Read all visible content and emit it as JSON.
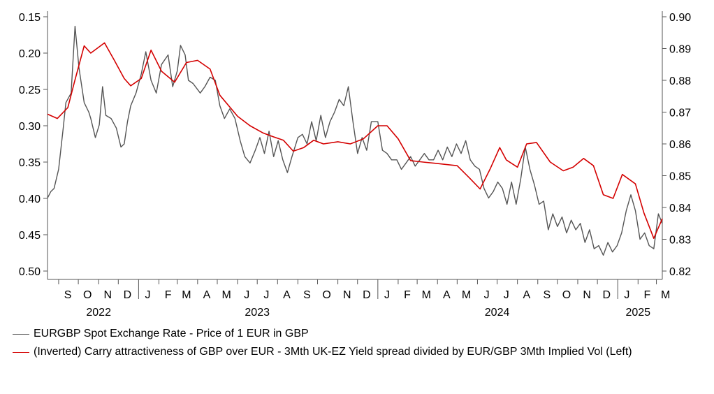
{
  "chart_data": {
    "type": "line",
    "title": "",
    "left_axis": {
      "ylim": [
        0.15,
        0.5
      ],
      "inverted": true,
      "ticks": [
        "0.15",
        "0.20",
        "0.25",
        "0.30",
        "0.35",
        "0.40",
        "0.45",
        "0.50"
      ]
    },
    "right_axis": {
      "ylim": [
        0.82,
        0.9
      ],
      "ticks": [
        "0.90",
        "0.89",
        "0.88",
        "0.87",
        "0.86",
        "0.85",
        "0.84",
        "0.83",
        "0.82"
      ]
    },
    "x_axis": {
      "range": [
        "2022-08-15",
        "2025-03-10"
      ],
      "month_labels": [
        "S",
        "O",
        "N",
        "D",
        "J",
        "F",
        "M",
        "A",
        "M",
        "J",
        "J",
        "A",
        "S",
        "O",
        "N",
        "D",
        "J",
        "F",
        "M",
        "A",
        "M",
        "J",
        "J",
        "A",
        "S",
        "O",
        "N",
        "D",
        "J",
        "F",
        "M"
      ],
      "year_labels": [
        "2022",
        "2023",
        "2024",
        "2025"
      ]
    },
    "grid": false,
    "series": [
      {
        "name": "EURGBP Spot Exchange Rate - Price of 1 EUR in GBP",
        "axis": "right",
        "color": "#555555",
        "points": [
          [
            "2022-08-15",
            0.843
          ],
          [
            "2022-08-20",
            0.845
          ],
          [
            "2022-08-25",
            0.846
          ],
          [
            "2022-09-01",
            0.852
          ],
          [
            "2022-09-08",
            0.865
          ],
          [
            "2022-09-12",
            0.873
          ],
          [
            "2022-09-20",
            0.876
          ],
          [
            "2022-09-26",
            0.897
          ],
          [
            "2022-10-02",
            0.884
          ],
          [
            "2022-10-10",
            0.873
          ],
          [
            "2022-10-17",
            0.87
          ],
          [
            "2022-10-20",
            0.868
          ],
          [
            "2022-10-27",
            0.862
          ],
          [
            "2022-11-02",
            0.866
          ],
          [
            "2022-11-07",
            0.878
          ],
          [
            "2022-11-12",
            0.869
          ],
          [
            "2022-11-20",
            0.868
          ],
          [
            "2022-11-28",
            0.865
          ],
          [
            "2022-12-05",
            0.859
          ],
          [
            "2022-12-10",
            0.86
          ],
          [
            "2022-12-15",
            0.867
          ],
          [
            "2022-12-20",
            0.872
          ],
          [
            "2022-12-28",
            0.876
          ],
          [
            "2023-01-05",
            0.882
          ],
          [
            "2023-01-12",
            0.889
          ],
          [
            "2023-01-20",
            0.88
          ],
          [
            "2023-01-28",
            0.876
          ],
          [
            "2023-02-05",
            0.885
          ],
          [
            "2023-02-15",
            0.888
          ],
          [
            "2023-02-22",
            0.878
          ],
          [
            "2023-03-01",
            0.883
          ],
          [
            "2023-03-06",
            0.891
          ],
          [
            "2023-03-13",
            0.888
          ],
          [
            "2023-03-18",
            0.88
          ],
          [
            "2023-03-25",
            0.879
          ],
          [
            "2023-04-05",
            0.876
          ],
          [
            "2023-04-12",
            0.878
          ],
          [
            "2023-04-20",
            0.881
          ],
          [
            "2023-04-28",
            0.88
          ],
          [
            "2023-05-05",
            0.872
          ],
          [
            "2023-05-12",
            0.868
          ],
          [
            "2023-05-20",
            0.871
          ],
          [
            "2023-05-28",
            0.868
          ],
          [
            "2023-06-05",
            0.861
          ],
          [
            "2023-06-12",
            0.856
          ],
          [
            "2023-06-20",
            0.854
          ],
          [
            "2023-06-28",
            0.858
          ],
          [
            "2023-07-05",
            0.862
          ],
          [
            "2023-07-12",
            0.857
          ],
          [
            "2023-07-19",
            0.864
          ],
          [
            "2023-07-26",
            0.856
          ],
          [
            "2023-08-02",
            0.861
          ],
          [
            "2023-08-09",
            0.855
          ],
          [
            "2023-08-16",
            0.851
          ],
          [
            "2023-08-23",
            0.856
          ],
          [
            "2023-09-01",
            0.862
          ],
          [
            "2023-09-08",
            0.863
          ],
          [
            "2023-09-15",
            0.86
          ],
          [
            "2023-09-22",
            0.867
          ],
          [
            "2023-09-29",
            0.861
          ],
          [
            "2023-10-06",
            0.869
          ],
          [
            "2023-10-13",
            0.862
          ],
          [
            "2023-10-20",
            0.867
          ],
          [
            "2023-10-27",
            0.87
          ],
          [
            "2023-11-03",
            0.874
          ],
          [
            "2023-11-10",
            0.872
          ],
          [
            "2023-11-17",
            0.878
          ],
          [
            "2023-11-24",
            0.867
          ],
          [
            "2023-12-01",
            0.857
          ],
          [
            "2023-12-08",
            0.862
          ],
          [
            "2023-12-15",
            0.858
          ],
          [
            "2023-12-22",
            0.867
          ],
          [
            "2024-01-01",
            0.867
          ],
          [
            "2024-01-08",
            0.858
          ],
          [
            "2024-01-15",
            0.857
          ],
          [
            "2024-01-22",
            0.855
          ],
          [
            "2024-01-30",
            0.855
          ],
          [
            "2024-02-06",
            0.852
          ],
          [
            "2024-02-13",
            0.854
          ],
          [
            "2024-02-20",
            0.856
          ],
          [
            "2024-02-27",
            0.853
          ],
          [
            "2024-03-05",
            0.855
          ],
          [
            "2024-03-12",
            0.857
          ],
          [
            "2024-03-19",
            0.855
          ],
          [
            "2024-03-26",
            0.855
          ],
          [
            "2024-04-02",
            0.858
          ],
          [
            "2024-04-09",
            0.855
          ],
          [
            "2024-04-16",
            0.859
          ],
          [
            "2024-04-23",
            0.856
          ],
          [
            "2024-04-30",
            0.86
          ],
          [
            "2024-05-07",
            0.857
          ],
          [
            "2024-05-14",
            0.861
          ],
          [
            "2024-05-21",
            0.855
          ],
          [
            "2024-05-28",
            0.853
          ],
          [
            "2024-06-04",
            0.852
          ],
          [
            "2024-06-11",
            0.846
          ],
          [
            "2024-06-18",
            0.843
          ],
          [
            "2024-06-25",
            0.845
          ],
          [
            "2024-07-02",
            0.848
          ],
          [
            "2024-07-09",
            0.846
          ],
          [
            "2024-07-16",
            0.841
          ],
          [
            "2024-07-23",
            0.848
          ],
          [
            "2024-07-30",
            0.841
          ],
          [
            "2024-08-06",
            0.849
          ],
          [
            "2024-08-13",
            0.859
          ],
          [
            "2024-08-20",
            0.852
          ],
          [
            "2024-08-27",
            0.847
          ],
          [
            "2024-09-03",
            0.841
          ],
          [
            "2024-09-10",
            0.842
          ],
          [
            "2024-09-17",
            0.833
          ],
          [
            "2024-09-24",
            0.838
          ],
          [
            "2024-10-01",
            0.834
          ],
          [
            "2024-10-08",
            0.837
          ],
          [
            "2024-10-15",
            0.832
          ],
          [
            "2024-10-22",
            0.836
          ],
          [
            "2024-10-29",
            0.833
          ],
          [
            "2024-11-05",
            0.835
          ],
          [
            "2024-11-12",
            0.829
          ],
          [
            "2024-11-19",
            0.833
          ],
          [
            "2024-11-26",
            0.827
          ],
          [
            "2024-12-03",
            0.828
          ],
          [
            "2024-12-10",
            0.825
          ],
          [
            "2024-12-17",
            0.829
          ],
          [
            "2024-12-24",
            0.826
          ],
          [
            "2024-12-31",
            0.828
          ],
          [
            "2025-01-07",
            0.832
          ],
          [
            "2025-01-14",
            0.839
          ],
          [
            "2025-01-21",
            0.844
          ],
          [
            "2025-01-28",
            0.839
          ],
          [
            "2025-02-04",
            0.83
          ],
          [
            "2025-02-11",
            0.832
          ],
          [
            "2025-02-18",
            0.828
          ],
          [
            "2025-02-25",
            0.827
          ],
          [
            "2025-03-04",
            0.838
          ],
          [
            "2025-03-10",
            0.835
          ]
        ]
      },
      {
        "name": "(Inverted) Carry attractiveness of GBP over EUR - 3Mth UK-EZ Yield spread divided by EUR/GBP 3Mth Implied Vol",
        "label_suffix": "(Left)",
        "axis": "left",
        "color": "#d40000",
        "points": [
          [
            "2022-08-15",
            0.284
          ],
          [
            "2022-08-30",
            0.29
          ],
          [
            "2022-09-15",
            0.275
          ],
          [
            "2022-09-25",
            0.24
          ],
          [
            "2022-10-10",
            0.19
          ],
          [
            "2022-10-20",
            0.2
          ],
          [
            "2022-11-10",
            0.186
          ],
          [
            "2022-11-25",
            0.21
          ],
          [
            "2022-12-10",
            0.235
          ],
          [
            "2022-12-20",
            0.245
          ],
          [
            "2023-01-05",
            0.235
          ],
          [
            "2023-01-20",
            0.196
          ],
          [
            "2023-02-05",
            0.225
          ],
          [
            "2023-02-25",
            0.24
          ],
          [
            "2023-03-15",
            0.213
          ],
          [
            "2023-04-01",
            0.21
          ],
          [
            "2023-04-20",
            0.222
          ],
          [
            "2023-05-05",
            0.258
          ],
          [
            "2023-06-01",
            0.287
          ],
          [
            "2023-06-20",
            0.3
          ],
          [
            "2023-07-10",
            0.31
          ],
          [
            "2023-07-25",
            0.315
          ],
          [
            "2023-08-10",
            0.32
          ],
          [
            "2023-08-25",
            0.335
          ],
          [
            "2023-09-10",
            0.33
          ],
          [
            "2023-09-25",
            0.32
          ],
          [
            "2023-10-10",
            0.325
          ],
          [
            "2023-11-01",
            0.322
          ],
          [
            "2023-11-20",
            0.325
          ],
          [
            "2023-12-10",
            0.318
          ],
          [
            "2024-01-01",
            0.3
          ],
          [
            "2024-01-15",
            0.3
          ],
          [
            "2024-02-01",
            0.318
          ],
          [
            "2024-02-20",
            0.348
          ],
          [
            "2024-03-10",
            0.35
          ],
          [
            "2024-04-01",
            0.352
          ],
          [
            "2024-05-01",
            0.355
          ],
          [
            "2024-05-20",
            0.372
          ],
          [
            "2024-06-05",
            0.387
          ],
          [
            "2024-06-20",
            0.36
          ],
          [
            "2024-07-05",
            0.33
          ],
          [
            "2024-07-15",
            0.347
          ],
          [
            "2024-08-01",
            0.357
          ],
          [
            "2024-08-15",
            0.325
          ],
          [
            "2024-08-30",
            0.323
          ],
          [
            "2024-09-20",
            0.35
          ],
          [
            "2024-10-10",
            0.362
          ],
          [
            "2024-10-25",
            0.357
          ],
          [
            "2024-11-10",
            0.345
          ],
          [
            "2024-11-25",
            0.355
          ],
          [
            "2024-12-10",
            0.395
          ],
          [
            "2024-12-25",
            0.4
          ],
          [
            "2025-01-08",
            0.367
          ],
          [
            "2025-01-28",
            0.38
          ],
          [
            "2025-02-10",
            0.42
          ],
          [
            "2025-02-25",
            0.455
          ],
          [
            "2025-03-10",
            0.428
          ]
        ]
      }
    ]
  },
  "legend": {
    "items": [
      {
        "label": "EURGBP Spot Exchange Rate - Price of 1 EUR in GBP",
        "color": "#555555"
      },
      {
        "label": "(Inverted) Carry attractiveness of GBP over EUR - 3Mth UK-EZ Yield spread divided by EUR/GBP 3Mth Implied Vol   (Left)",
        "color": "#d40000"
      }
    ]
  }
}
